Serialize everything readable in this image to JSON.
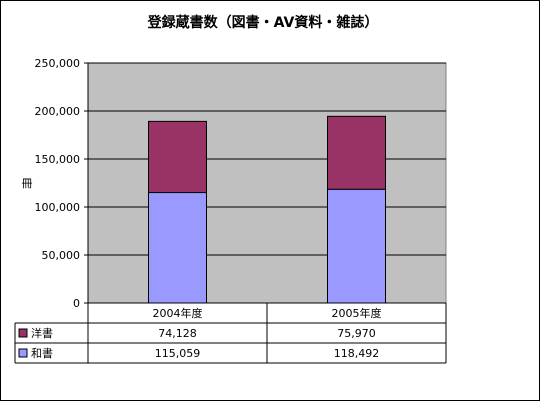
{
  "chart_data": {
    "type": "bar",
    "stacked": true,
    "title": "登録蔵書数（図書・AV資料・雑誌）",
    "ylabel": "冊",
    "xlabel": "",
    "ylim": [
      0,
      250000
    ],
    "y_ticks": [
      0,
      50000,
      100000,
      150000,
      200000,
      250000
    ],
    "y_tick_labels": [
      "0",
      "50,000",
      "100,000",
      "150,000",
      "200,000",
      "250,000"
    ],
    "grid": true,
    "legend": "data-table",
    "categories": [
      "2004年度",
      "2005年度"
    ],
    "series": [
      {
        "name": "和書",
        "values": [
          115059,
          118492
        ],
        "labels": [
          "115,059",
          "118,492"
        ],
        "color": "#9999FF"
      },
      {
        "name": "洋書",
        "values": [
          74128,
          75970
        ],
        "labels": [
          "74,128",
          "75,970"
        ],
        "color": "#993366"
      }
    ],
    "plot_background": "#C0C0C0"
  }
}
